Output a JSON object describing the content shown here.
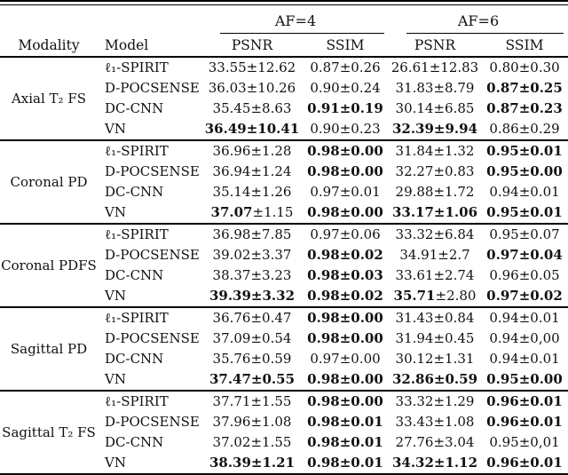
{
  "table": {
    "col_headers": {
      "modality": "Modality",
      "model": "Model",
      "af4": "AF=4",
      "af6": "AF=6",
      "psnr": "PSNR",
      "ssim": "SSIM"
    },
    "groups": [
      {
        "modality": "Axial T₂ FS",
        "rows": [
          {
            "model": "ℓ₁-SPIRIT",
            "cells": [
              {
                "t": "33.55±12.62",
                "b": "none"
              },
              {
                "t": "0.87±0.26",
                "b": "none"
              },
              {
                "t": "26.61±12.83",
                "b": "none"
              },
              {
                "t": "0.80±0.30",
                "b": "none"
              }
            ]
          },
          {
            "model": "D-POCSENSE",
            "cells": [
              {
                "t": "36.03±10.26",
                "b": "none"
              },
              {
                "t": "0.90±0.24",
                "b": "none"
              },
              {
                "t": "31.83±8.79",
                "b": "none"
              },
              {
                "t": "0.87±0.25",
                "b": "all"
              }
            ]
          },
          {
            "model": "DC-CNN",
            "cells": [
              {
                "t": "35.45±8.63",
                "b": "none"
              },
              {
                "t": "0.91±0.19",
                "b": "all"
              },
              {
                "t": "30.14±6.85",
                "b": "none"
              },
              {
                "t": "0.87±0.23",
                "b": "all"
              }
            ]
          },
          {
            "model": "VN",
            "cells": [
              {
                "t": "36.49±10.41",
                "b": "all"
              },
              {
                "t": "0.90±0.23",
                "b": "none"
              },
              {
                "t": "32.39±9.94",
                "b": "all"
              },
              {
                "t": "0.86±0.29",
                "b": "none"
              }
            ]
          }
        ]
      },
      {
        "modality": "Coronal PD",
        "rows": [
          {
            "model": "ℓ₁-SPIRIT",
            "cells": [
              {
                "t": "36.96±1.28",
                "b": "none"
              },
              {
                "t": "0.98±0.00",
                "b": "all"
              },
              {
                "t": "31.84±1.32",
                "b": "none"
              },
              {
                "t": "0.95±0.01",
                "b": "all"
              }
            ]
          },
          {
            "model": "D-POCSENSE",
            "cells": [
              {
                "t": "36.94±1.24",
                "b": "none"
              },
              {
                "t": "0.98±0.00",
                "b": "all"
              },
              {
                "t": "32.27±0.83",
                "b": "none"
              },
              {
                "t": "0.95±0.00",
                "b": "all"
              }
            ]
          },
          {
            "model": "DC-CNN",
            "cells": [
              {
                "t": "35.14±1.26",
                "b": "none"
              },
              {
                "t": "0.97±0.01",
                "b": "none"
              },
              {
                "t": "29.88±1.72",
                "b": "none"
              },
              {
                "t": "0.94±0.01",
                "b": "none"
              }
            ]
          },
          {
            "model": "VN",
            "cells": [
              {
                "t": "37.07±1.15",
                "b": "mean"
              },
              {
                "t": "0.98±0.00",
                "b": "all"
              },
              {
                "t": "33.17±1.06",
                "b": "all"
              },
              {
                "t": "0.95±0.01",
                "b": "all"
              }
            ]
          }
        ]
      },
      {
        "modality": "Coronal PDFS",
        "rows": [
          {
            "model": "ℓ₁-SPIRIT",
            "cells": [
              {
                "t": "36.98±7.85",
                "b": "none"
              },
              {
                "t": "0.97±0.06",
                "b": "none"
              },
              {
                "t": "33.32±6.84",
                "b": "none"
              },
              {
                "t": "0.95±0.07",
                "b": "none"
              }
            ]
          },
          {
            "model": "D-POCSENSE",
            "cells": [
              {
                "t": "39.02±3.37",
                "b": "none"
              },
              {
                "t": "0.98±0.02",
                "b": "all"
              },
              {
                "t": "34.91±2.7",
                "b": "none"
              },
              {
                "t": "0.97±0.04",
                "b": "all"
              }
            ]
          },
          {
            "model": "DC-CNN",
            "cells": [
              {
                "t": "38.37±3.23",
                "b": "none"
              },
              {
                "t": "0.98±0.03",
                "b": "all"
              },
              {
                "t": "33.61±2.74",
                "b": "none"
              },
              {
                "t": "0.96±0.05",
                "b": "none"
              }
            ]
          },
          {
            "model": "VN",
            "cells": [
              {
                "t": "39.39±3.32",
                "b": "all"
              },
              {
                "t": "0.98±0.02",
                "b": "all"
              },
              {
                "t": "35.71±2.80",
                "b": "mean"
              },
              {
                "t": "0.97±0.02",
                "b": "all"
              }
            ]
          }
        ]
      },
      {
        "modality": "Sagittal PD",
        "rows": [
          {
            "model": "ℓ₁-SPIRIT",
            "cells": [
              {
                "t": "36.76±0.47",
                "b": "none"
              },
              {
                "t": "0.98±0.00",
                "b": "all"
              },
              {
                "t": "31.43±0.84",
                "b": "none"
              },
              {
                "t": "0.94±0.01",
                "b": "none"
              }
            ]
          },
          {
            "model": "D-POCSENSE",
            "cells": [
              {
                "t": "37.09±0.54",
                "b": "none"
              },
              {
                "t": "0.98±0.00",
                "b": "all"
              },
              {
                "t": "31.94±0.45",
                "b": "none"
              },
              {
                "t": "0.94±0,00",
                "b": "none"
              }
            ]
          },
          {
            "model": "DC-CNN",
            "cells": [
              {
                "t": "35.76±0.59",
                "b": "none"
              },
              {
                "t": "0.97±0.00",
                "b": "none"
              },
              {
                "t": "30.12±1.31",
                "b": "none"
              },
              {
                "t": "0.94±0.01",
                "b": "none"
              }
            ]
          },
          {
            "model": "VN",
            "cells": [
              {
                "t": "37.47±0.55",
                "b": "all"
              },
              {
                "t": "0.98±0.00",
                "b": "all"
              },
              {
                "t": "32.86±0.59",
                "b": "all"
              },
              {
                "t": "0.95±0.00",
                "b": "all"
              }
            ]
          }
        ]
      },
      {
        "modality": "Sagittal T₂ FS",
        "rows": [
          {
            "model": "ℓ₁-SPIRIT",
            "cells": [
              {
                "t": "37.71±1.55",
                "b": "none"
              },
              {
                "t": "0.98±0.00",
                "b": "all"
              },
              {
                "t": "33.32±1.29",
                "b": "none"
              },
              {
                "t": "0.96±0.01",
                "b": "all"
              }
            ]
          },
          {
            "model": "D-POCSENSE",
            "cells": [
              {
                "t": "37.96±1.08",
                "b": "none"
              },
              {
                "t": "0.98±0.01",
                "b": "all"
              },
              {
                "t": "33.43±1.08",
                "b": "none"
              },
              {
                "t": "0.96±0.01",
                "b": "all"
              }
            ]
          },
          {
            "model": "DC-CNN",
            "cells": [
              {
                "t": "37.02±1.55",
                "b": "none"
              },
              {
                "t": "0.98±0.01",
                "b": "all"
              },
              {
                "t": "27.76±3.04",
                "b": "none"
              },
              {
                "t": "0.95±0,01",
                "b": "none"
              }
            ]
          },
          {
            "model": "VN",
            "cells": [
              {
                "t": "38.39±1.21",
                "b": "all"
              },
              {
                "t": "0.98±0.01",
                "b": "all"
              },
              {
                "t": "34.32±1.12",
                "b": "all"
              },
              {
                "t": "0.96±0.01",
                "b": "all"
              }
            ]
          }
        ]
      }
    ]
  }
}
